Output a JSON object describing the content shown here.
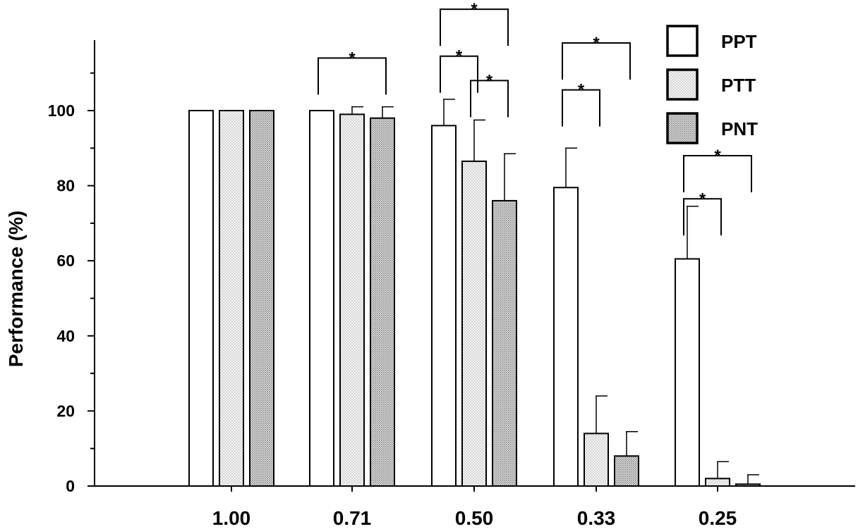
{
  "chart_data": {
    "type": "bar",
    "title": "",
    "xlabel": "",
    "ylabel": "Performance (%)",
    "ylim": [
      0,
      120
    ],
    "yticks": [
      0,
      20,
      40,
      60,
      80,
      100
    ],
    "categories": [
      "1.00",
      "0.71",
      "0.50",
      "0.33",
      "0.25"
    ],
    "series": [
      {
        "name": "PPT",
        "values": [
          100,
          100,
          96,
          79.5,
          60.5
        ],
        "errors": [
          0,
          0,
          7,
          10.5,
          14
        ],
        "fill": "#ffffff"
      },
      {
        "name": "PTT",
        "values": [
          100,
          99,
          86.5,
          14,
          2
        ],
        "errors": [
          0,
          2,
          11,
          10,
          4.5
        ],
        "fill": "#eaeaea"
      },
      {
        "name": "PNT",
        "values": [
          100,
          98,
          76,
          8,
          0.5
        ],
        "errors": [
          0,
          3,
          12.5,
          6.5,
          2.5
        ],
        "fill": "#cfcfcf"
      }
    ],
    "legend_position": "top-right",
    "significance": [
      {
        "category": "0.71",
        "from": "PPT",
        "to": "PNT",
        "label": "*"
      },
      {
        "category": "0.50",
        "from": "PPT",
        "to": "PNT",
        "label": "*"
      },
      {
        "category": "0.50",
        "from": "PPT",
        "to": "PTT",
        "label": "*"
      },
      {
        "category": "0.50",
        "from": "PTT",
        "to": "PNT",
        "label": "*"
      },
      {
        "category": "0.33",
        "from": "PPT",
        "to": "PNT",
        "label": "*"
      },
      {
        "category": "0.33",
        "from": "PPT",
        "to": "PTT",
        "label": "*"
      },
      {
        "category": "0.25",
        "from": "PPT",
        "to": "PNT",
        "label": "*"
      },
      {
        "category": "0.25",
        "from": "PPT",
        "to": "PTT",
        "label": "*"
      }
    ]
  }
}
